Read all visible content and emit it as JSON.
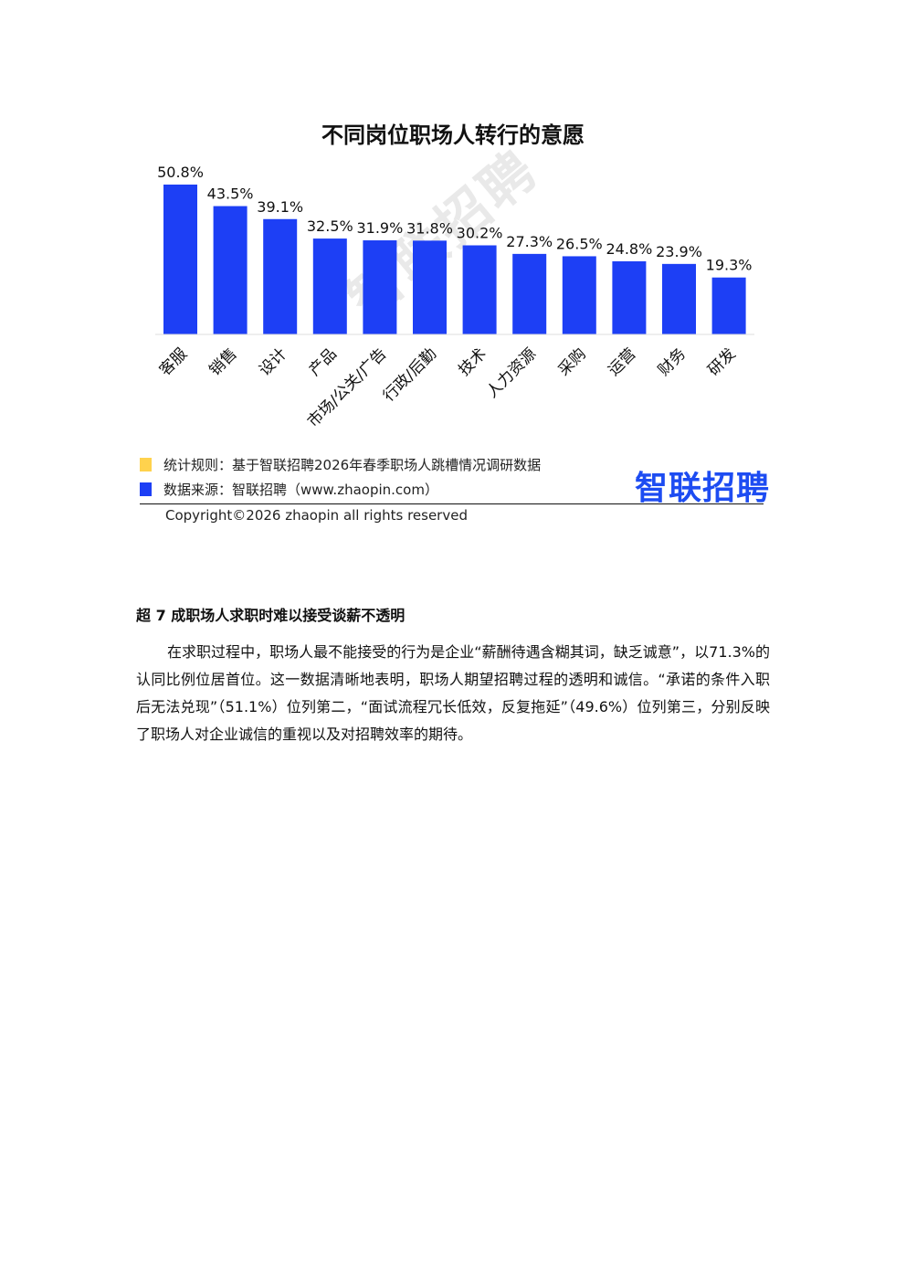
{
  "chart_data": {
    "type": "bar",
    "title": "不同岗位职场人转行的意愿",
    "categories": [
      "客服",
      "销售",
      "设计",
      "产品",
      "市场/公关/广告",
      "行政/后勤",
      "技术",
      "人力资源",
      "采购",
      "运营",
      "财务",
      "研发"
    ],
    "values": [
      50.8,
      43.5,
      39.1,
      32.5,
      31.9,
      31.8,
      30.2,
      27.3,
      26.5,
      24.8,
      23.9,
      19.3
    ],
    "value_labels": [
      "50.8%",
      "43.5%",
      "39.1%",
      "32.5%",
      "31.9%",
      "31.8%",
      "30.2%",
      "27.3%",
      "26.5%",
      "24.8%",
      "23.9%",
      "19.3%"
    ],
    "bar_color": "#1d3ff5",
    "ylim": [
      0,
      50.8
    ],
    "grid": false,
    "legend": "none",
    "xlabel": "",
    "ylabel": ""
  },
  "watermark": "智联招聘",
  "legend_notes": [
    {
      "text": "统计规则：基于智联招聘2026年春季职场人跳槽情况调研数据",
      "color": "#ffd24d"
    },
    {
      "text": "数据来源：智联招聘（www.zhaopin.com）",
      "color": "#1d3ff5"
    }
  ],
  "logo_text": "智联招聘",
  "copyright": "Copyright©2026 zhaopin all rights reserved",
  "article": {
    "heading": "超 7 成职场人求职时难以接受谈薪不透明",
    "paragraph": "在求职过程中，职场人最不能接受的行为是企业“薪酬待遇含糊其词，缺乏诚意”，以71.3%的认同比例位居首位。这一数据清晰地表明，职场人期望招聘过程的透明和诚信。“承诺的条件入职后无法兑现”（51.1%）位列第二，“面试流程冗长低效，反复拖延”（49.6%）位列第三，分别反映了职场人对企业诚信的重视以及对招聘效率的期待。"
  }
}
